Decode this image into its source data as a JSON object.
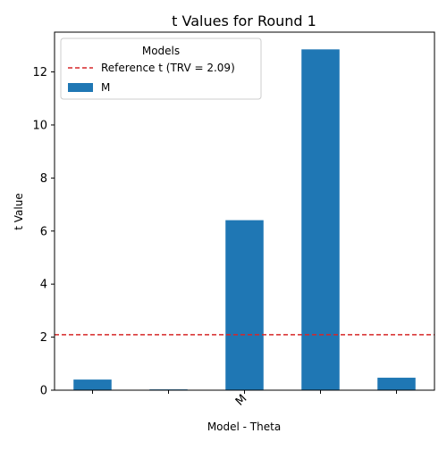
{
  "chart_data": {
    "type": "bar",
    "title": "t Values for Round 1",
    "xlabel": "Model - Theta",
    "ylabel": "t Value",
    "categories": [
      "",
      "",
      "M",
      "",
      ""
    ],
    "series": [
      {
        "name": "M",
        "values": [
          0.4,
          0.03,
          6.41,
          12.85,
          0.47
        ],
        "color": "#1f77b4"
      }
    ],
    "reference_line": {
      "label": "Reference t (TRV = 2.09)",
      "value": 2.09,
      "color": "#d62728",
      "style": "dashed"
    },
    "ylim": [
      0,
      13.5
    ],
    "yticks": [
      0,
      2,
      4,
      6,
      8,
      10,
      12
    ],
    "grid": false,
    "legend": {
      "title": "Models",
      "position": "top-left"
    }
  }
}
